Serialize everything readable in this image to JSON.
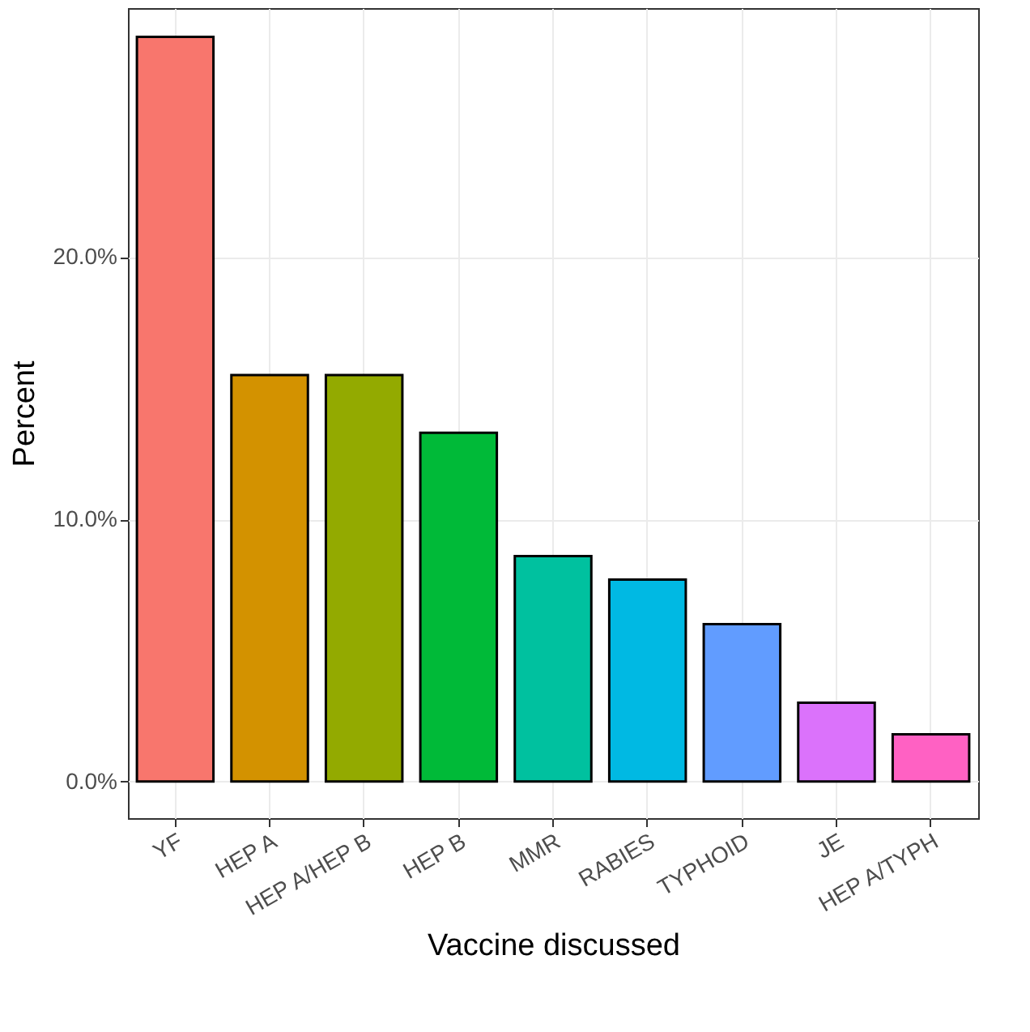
{
  "chart_data": {
    "type": "bar",
    "xlabel": "Vaccine discussed",
    "ylabel": "Percent",
    "categories": [
      "YF",
      "HEP A",
      "HEP A/HEP B",
      "HEP B",
      "MMR",
      "RABIES",
      "TYPHOID",
      "JE",
      "HEP A/TYPH"
    ],
    "values": [
      28.4,
      15.5,
      15.5,
      13.3,
      8.6,
      7.7,
      6.0,
      3.0,
      1.8
    ],
    "colors": [
      "#f8766d",
      "#d39200",
      "#93aa00",
      "#00ba38",
      "#00c19f",
      "#00b9e3",
      "#619cff",
      "#db72fb",
      "#ff61c3"
    ],
    "ylim": [
      -1.4,
      29.5
    ],
    "yticks": [
      {
        "value": 0,
        "label": "0.0%"
      },
      {
        "value": 10,
        "label": "10.0%"
      },
      {
        "value": 20,
        "label": "20.0%"
      }
    ],
    "grid": true
  }
}
